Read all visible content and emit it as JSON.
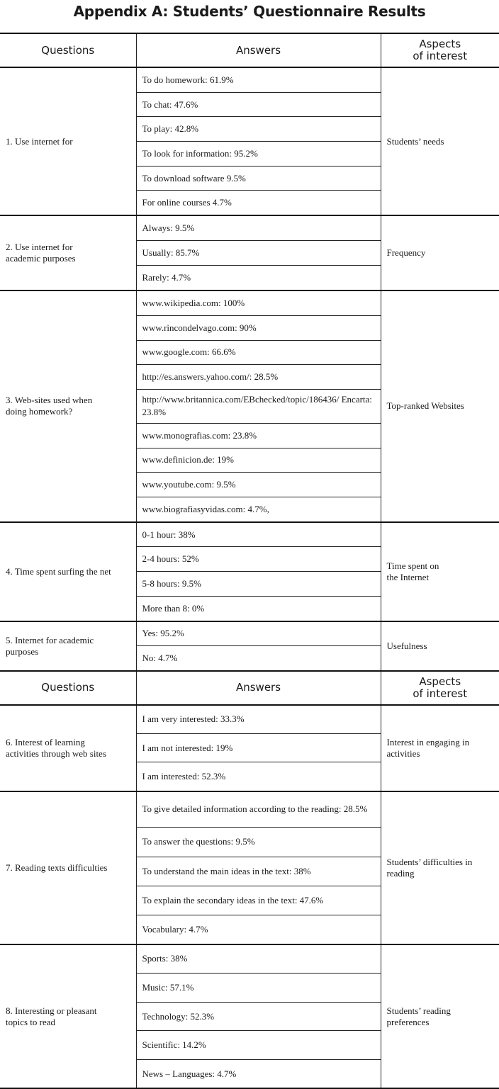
{
  "title": "Appendix A: Students’ Questionnaire Results",
  "headers": {
    "questions": "Questions",
    "answers": "Answers",
    "aspects_line1": "Aspects",
    "aspects_line2": "of interest"
  },
  "groups": [
    {
      "question": "1. Use internet for",
      "aspect": "Students’ needs",
      "answers": [
        "To do homework: 61.9%",
        "To chat: 47.6%",
        "To play: 42.8%",
        "To look for information: 95.2%",
        "To download software 9.5%",
        "For online courses 4.7%"
      ]
    },
    {
      "question": "2.  Use internet for academic purposes",
      "aspect": "Frequency",
      "answers": [
        "Always: 9.5%",
        "Usually: 85.7%",
        "Rarely: 4.7%"
      ]
    },
    {
      "question": "3.  Web-sites used when doing homework?",
      "aspect": "Top-ranked Websites",
      "answers": [
        "www.wikipedia.com: 100%",
        "www.rincondelvago.com: 90%",
        "www.google.com: 66.6%",
        "http://es.answers.yahoo.com/: 28.5%",
        "http://www.britannica.com/EBchecked/topic/186436/ Encarta: 23.8%",
        "www.monografias.com: 23.8%",
        "www.definicion.de: 19%",
        "www.youtube.com: 9.5%",
        "www.biografiasyvidas.com: 4.7%,"
      ]
    },
    {
      "question": "4. Time spent surfing the net",
      "aspect": "Time spent on the Internet",
      "answers": [
        "0-1 hour: 38%",
        "2-4 hours: 52%",
        "5-8 hours: 9.5%",
        "More than 8: 0%"
      ]
    },
    {
      "question": "5.  Internet for academic purposes",
      "aspect": "Usefulness",
      "answers": [
        "Yes: 95.2%",
        "No: 4.7%"
      ],
      "header_after": true
    },
    {
      "question": "6.  Interest of learning activities through web sites",
      "aspect": "Interest in engaging in activities",
      "answers": [
        "I am very interested: 33.3%",
        "I am not interested: 19%",
        "I am interested: 52.3%"
      ]
    },
    {
      "question": "7. Reading texts difficulties",
      "aspect": "Students’ difficulties in reading",
      "answers": [
        "To give detailed information according to the reading: 28.5%",
        "To answer the questions: 9.5%",
        "To understand the main ideas in the text: 38%",
        "To explain the secondary ideas in the text: 47.6%",
        "Vocabulary: 4.7%"
      ]
    },
    {
      "question": "8.  Interesting or pleasant topics to read",
      "aspect": "Students’ reading preferences",
      "answers": [
        "Sports: 38%",
        "Music: 57.1%",
        "Technology: 52.3%",
        "Scientific: 14.2%",
        "News – Languages: 4.7%"
      ]
    }
  ]
}
